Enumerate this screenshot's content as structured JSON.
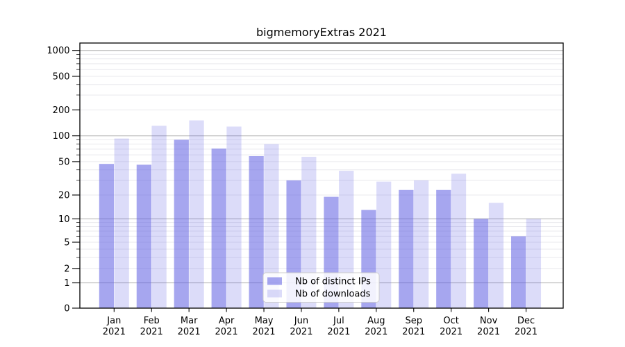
{
  "title": "bigmemoryExtras 2021",
  "legend": {
    "items": [
      {
        "label": "Nb of distinct IPs",
        "color": "rgba(90,90,225,0.54)"
      },
      {
        "label": "Nb of downloads",
        "color": "rgba(90,90,225,0.21)"
      }
    ]
  },
  "chart_data": {
    "type": "bar",
    "title": "bigmemoryExtras 2021",
    "categories": [
      "Jan 2021",
      "Feb 2021",
      "Mar 2021",
      "Apr 2021",
      "May 2021",
      "Jun 2021",
      "Jul 2021",
      "Aug 2021",
      "Sep 2021",
      "Oct 2021",
      "Nov 2021",
      "Dec 2021"
    ],
    "series": [
      {
        "name": "Nb of distinct IPs",
        "color": "rgba(90,90,225,0.54)",
        "values": [
          47,
          46,
          90,
          71,
          58,
          30,
          19,
          13,
          23,
          23,
          10,
          6
        ]
      },
      {
        "name": "Nb of downloads",
        "color": "rgba(90,90,225,0.21)",
        "values": [
          93,
          131,
          151,
          128,
          80,
          57,
          39,
          29,
          30,
          36,
          16,
          10
        ]
      }
    ],
    "yscale": "log1p",
    "yticks": [
      0,
      1,
      2,
      5,
      10,
      20,
      50,
      100,
      200,
      500,
      1000
    ],
    "ylim": [
      0,
      1240
    ],
    "grid": "horizontal, log minor gridlines",
    "legend_position": "lower center"
  },
  "colors": {
    "major_grid": "#b0b0b0",
    "minor_grid": "#e9e9ee",
    "spine": "#000000",
    "background": "#ffffff",
    "legend_border": "#cccccc",
    "legend_bg": "rgba(255,255,255,0.85)"
  }
}
